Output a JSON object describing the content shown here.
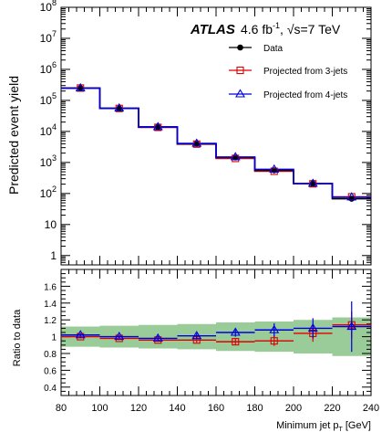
{
  "chart_data": [
    {
      "type": "line",
      "panel": "main",
      "ylabel": "Predicted event yield",
      "yscale": "log",
      "ylim": [
        0.5,
        100000000
      ],
      "xlim": [
        80,
        240
      ],
      "yticks": [
        {
          "v": 100000000,
          "base": "10",
          "exp": "8"
        },
        {
          "v": 10000000,
          "base": "10",
          "exp": "7"
        },
        {
          "v": 1000000,
          "base": "10",
          "exp": "6"
        },
        {
          "v": 100000,
          "base": "10",
          "exp": "5"
        },
        {
          "v": 10000,
          "base": "10",
          "exp": "4"
        },
        {
          "v": 1000,
          "base": "10",
          "exp": "3"
        },
        {
          "v": 100,
          "base": "10",
          "exp": "2"
        },
        {
          "v": 10,
          "base": "10",
          "exp": ""
        },
        {
          "v": 1,
          "base": "1",
          "exp": ""
        }
      ],
      "bin_edges": [
        80,
        100,
        120,
        140,
        160,
        180,
        200,
        220,
        240
      ],
      "series": [
        {
          "name": "Data",
          "color": "#000000",
          "marker": "circle",
          "values": [
            250000,
            55000,
            14000,
            4000,
            1450,
            560,
            210,
            68
          ]
        },
        {
          "name": "Projected from 3-jets",
          "color": "#dd0000",
          "marker": "square-open",
          "values": [
            250000,
            55000,
            13500,
            3900,
            1350,
            520,
            205,
            78
          ]
        },
        {
          "name": "Projected from 4-jets",
          "color": "#0000dd",
          "marker": "triangle-open",
          "values": [
            250000,
            56000,
            14000,
            4100,
            1500,
            600,
            210,
            76
          ]
        }
      ],
      "atlas_label": "ATLAS",
      "lumi_label": "4.6 fb",
      "lumi_sup": "-1",
      "energy_label": ", √s=7 TeV"
    },
    {
      "type": "line",
      "panel": "ratio",
      "ylabel": "Ratio to data",
      "xlabel": "Minimum jet p",
      "xlabel_sub": "T",
      "xlabel_unit": " [GeV]",
      "ylim": [
        0.3,
        1.8
      ],
      "yticks": [
        "0.4",
        "0.6",
        "0.8",
        "1",
        "1.2",
        "1.4",
        "1.6"
      ],
      "xticks": [
        "80",
        "100",
        "120",
        "140",
        "160",
        "180",
        "200",
        "220",
        "240"
      ],
      "bin_edges": [
        80,
        100,
        120,
        140,
        160,
        180,
        200,
        220,
        240
      ],
      "band": {
        "color": "#99cc99",
        "lower": [
          0.88,
          0.87,
          0.86,
          0.85,
          0.83,
          0.82,
          0.8,
          0.77
        ],
        "upper": [
          1.12,
          1.13,
          1.14,
          1.15,
          1.17,
          1.18,
          1.2,
          1.23
        ]
      },
      "series": [
        {
          "name": "Projected from 3-jets",
          "color": "#dd0000",
          "values": [
            1.0,
            0.98,
            0.96,
            0.96,
            0.94,
            0.95,
            1.04,
            1.14
          ],
          "err": [
            0.02,
            0.02,
            0.02,
            0.03,
            0.04,
            0.06,
            0.1,
            0.16
          ]
        },
        {
          "name": "Projected from 4-jets",
          "color": "#0000dd",
          "values": [
            1.02,
            1.0,
            0.98,
            1.01,
            1.05,
            1.08,
            1.1,
            1.12
          ],
          "err": [
            0.02,
            0.02,
            0.03,
            0.03,
            0.05,
            0.08,
            0.12,
            0.3
          ]
        }
      ]
    }
  ]
}
